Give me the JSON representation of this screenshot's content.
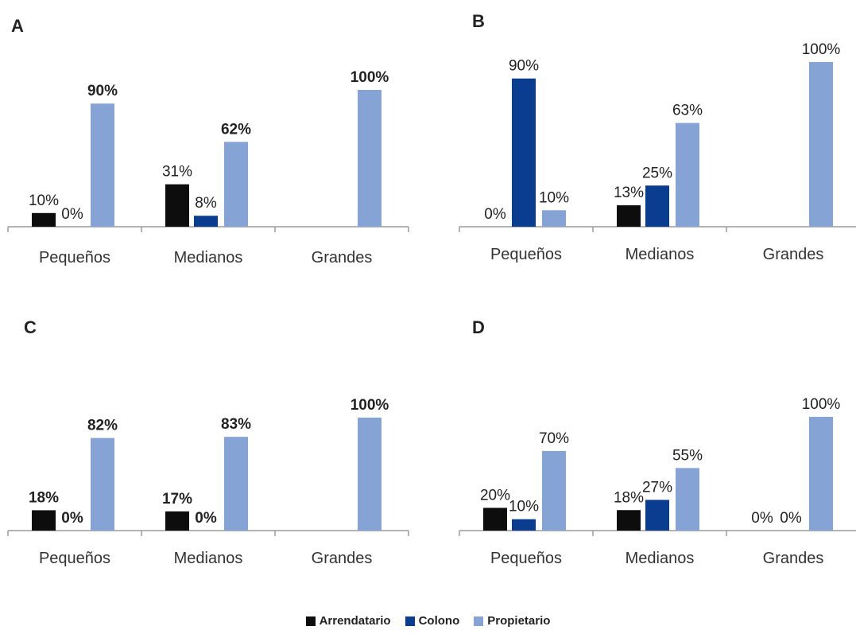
{
  "legend": [
    {
      "name": "Arrendatario",
      "color": "#0d0d0d"
    },
    {
      "name": "Colono",
      "color": "#0a3d8f"
    },
    {
      "name": "Propietario",
      "color": "#86a3d6"
    }
  ],
  "chart_data": [
    {
      "type": "bar",
      "panel": "A",
      "categories": [
        "Pequeños",
        "Medianos",
        "Grandes"
      ],
      "ylim": [
        0,
        100
      ],
      "grid": false,
      "bold_labels_series": [
        "Propietario"
      ],
      "series": [
        {
          "name": "Arrendatario",
          "values": [
            10,
            31,
            null
          ],
          "labels": [
            "10%",
            "31%",
            ""
          ]
        },
        {
          "name": "Colono",
          "values": [
            0,
            8,
            null
          ],
          "labels": [
            "0%",
            "8%",
            ""
          ]
        },
        {
          "name": "Propietario",
          "values": [
            90,
            62,
            100
          ],
          "labels": [
            "90%",
            "62%",
            "100%"
          ]
        }
      ]
    },
    {
      "type": "bar",
      "panel": "B",
      "categories": [
        "Pequeños",
        "Medianos",
        "Grandes"
      ],
      "ylim": [
        0,
        100
      ],
      "grid": false,
      "bold_labels_series": [],
      "series": [
        {
          "name": "Arrendatario",
          "values": [
            0,
            13,
            null
          ],
          "labels": [
            "0%",
            "13%",
            ""
          ]
        },
        {
          "name": "Colono",
          "values": [
            90,
            25,
            null
          ],
          "labels": [
            "90%",
            "25%",
            ""
          ]
        },
        {
          "name": "Propietario",
          "values": [
            10,
            63,
            100
          ],
          "labels": [
            "10%",
            "63%",
            "100%"
          ]
        }
      ]
    },
    {
      "type": "bar",
      "panel": "C",
      "categories": [
        "Pequeños",
        "Medianos",
        "Grandes"
      ],
      "ylim": [
        0,
        100
      ],
      "grid": false,
      "bold_labels_series": [
        "Arrendatario",
        "Colono",
        "Propietario"
      ],
      "series": [
        {
          "name": "Arrendatario",
          "values": [
            18,
            17,
            null
          ],
          "labels": [
            "18%",
            "17%",
            ""
          ]
        },
        {
          "name": "Colono",
          "values": [
            0,
            0,
            null
          ],
          "labels": [
            "0%",
            "0%",
            ""
          ]
        },
        {
          "name": "Propietario",
          "values": [
            82,
            83,
            100
          ],
          "labels": [
            "82%",
            "83%",
            "100%"
          ]
        }
      ]
    },
    {
      "type": "bar",
      "panel": "D",
      "categories": [
        "Pequeños",
        "Medianos",
        "Grandes"
      ],
      "ylim": [
        0,
        100
      ],
      "grid": false,
      "bold_labels_series": [],
      "series": [
        {
          "name": "Arrendatario",
          "values": [
            20,
            18,
            0
          ],
          "labels": [
            "20%",
            "18%",
            "0%"
          ]
        },
        {
          "name": "Colono",
          "values": [
            10,
            27,
            0
          ],
          "labels": [
            "10%",
            "27%",
            "0%"
          ]
        },
        {
          "name": "Propietario",
          "values": [
            70,
            55,
            100
          ],
          "labels": [
            "70%",
            "55%",
            "100%"
          ]
        }
      ]
    }
  ]
}
